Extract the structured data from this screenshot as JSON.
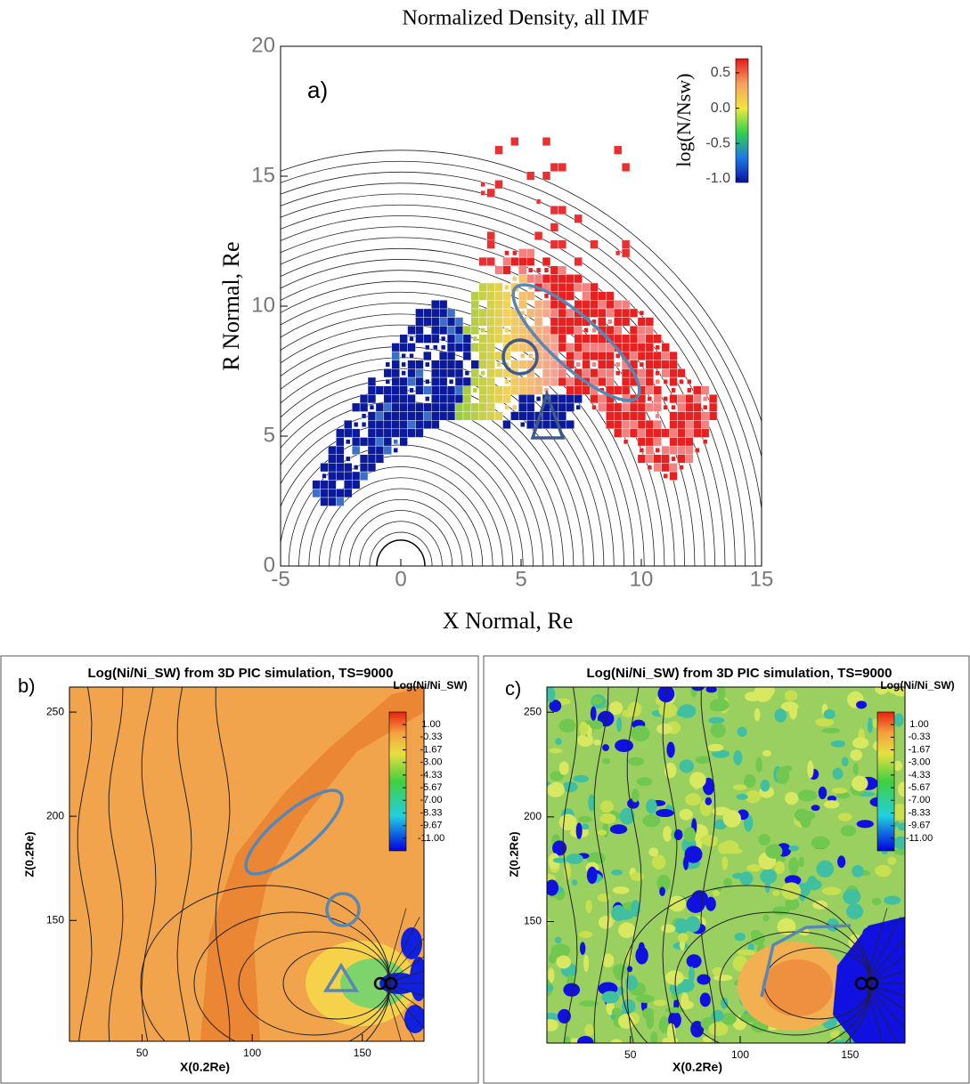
{
  "chart_data": [
    {
      "type": "heatmap",
      "title": "Normalized Density, all IMF",
      "panel_label": "a)",
      "x_label": "X Normal, Re",
      "y_label": "R Normal, Re",
      "xlim": [
        -5,
        15
      ],
      "xticks": [
        -5,
        0,
        5,
        10,
        15
      ],
      "ylim": [
        0,
        20
      ],
      "yticks": [
        0,
        5,
        10,
        15,
        20
      ],
      "colorbar": {
        "label": "log(N/Nsw)",
        "lim": [
          -1.05,
          0.7
        ],
        "ticks": [
          {
            "value": -1,
            "label": "-1.0"
          },
          {
            "value": -0.5,
            "label": "-0.5"
          },
          {
            "value": 0,
            "label": "0.0"
          },
          0.5
        ]
      }
    },
    {
      "type": "heatmap",
      "title": "Log(Ni/Ni_SW) from 3D PIC simulation, TS=9000",
      "panel_label": "b)",
      "x_label": "X(0.2Re)",
      "y_label": "Z(0.2Re)",
      "xlim": [
        17,
        178
      ],
      "xticks": [
        50,
        100,
        150
      ],
      "ylim": [
        92,
        262
      ],
      "yticks": [
        150,
        200,
        250
      ],
      "colorbar": {
        "label": "Log(Ni/Ni_SW)",
        "lim": [
          -12.33,
          2.33
        ],
        "ticks": [
          {
            "value": 1,
            "label": "1.00"
          },
          -0.33,
          -1.67,
          {
            "value": -3,
            "label": "-3.00"
          },
          -4.33,
          -5.67,
          {
            "value": -7,
            "label": "-7.00"
          },
          -8.33,
          -9.67,
          {
            "value": -11,
            "label": "-11.00"
          }
        ]
      }
    },
    {
      "type": "heatmap",
      "title": "Log(Ni/Ni_SW) from 3D PIC simulation, TS=9000",
      "panel_label": "c)",
      "x_label": "X(0.2Re)",
      "y_label": "Z(0.2Re)",
      "xlim": [
        12,
        175
      ],
      "xticks": [
        50,
        100,
        150
      ],
      "ylim": [
        92,
        262
      ],
      "yticks": [
        150,
        200,
        250
      ],
      "colorbar": {
        "label": "Log(Ni/Ni_SW)",
        "lim": [
          -12.33,
          2.33
        ],
        "ticks": [
          {
            "value": 1,
            "label": "1.00"
          },
          -0.33,
          -1.67,
          {
            "value": -3,
            "label": "-3.00"
          },
          -4.33,
          -5.67,
          {
            "value": -7,
            "label": "-7.00"
          },
          -8.33,
          -9.67,
          {
            "value": -11,
            "label": "-11.00"
          }
        ]
      }
    }
  ]
}
